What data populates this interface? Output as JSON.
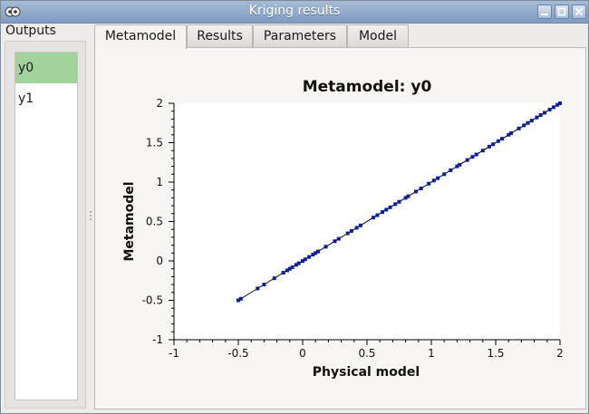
{
  "window": {
    "title": "Kriging results"
  },
  "outputs": {
    "label": "Outputs",
    "items": [
      {
        "label": "y0",
        "selected": true
      },
      {
        "label": "y1",
        "selected": false
      }
    ]
  },
  "tabs": [
    {
      "label": "Metamodel",
      "active": true
    },
    {
      "label": "Results",
      "active": false
    },
    {
      "label": "Parameters",
      "active": false
    },
    {
      "label": "Model",
      "active": false
    }
  ],
  "chart_data": {
    "type": "scatter",
    "title": "Metamodel: y0",
    "xlabel": "Physical model",
    "ylabel": "Metamodel",
    "xlim": [
      -1,
      2
    ],
    "ylim": [
      -1,
      2
    ],
    "xticks": [
      "-1",
      "-0.5",
      "0",
      "0.5",
      "1",
      "1.5",
      "2"
    ],
    "yticks": [
      "-1",
      "-0.5",
      "0",
      "0.5",
      "1",
      "1.5",
      "2"
    ],
    "grid": false,
    "legend": "none",
    "series": [
      {
        "points": [
          [
            -0.5,
            -0.5
          ],
          [
            -0.48,
            -0.48
          ],
          [
            -0.35,
            -0.35
          ],
          [
            -0.3,
            -0.3
          ],
          [
            -0.22,
            -0.22
          ],
          [
            -0.15,
            -0.15
          ],
          [
            -0.12,
            -0.12
          ],
          [
            -0.1,
            -0.1
          ],
          [
            -0.08,
            -0.08
          ],
          [
            -0.05,
            -0.05
          ],
          [
            -0.03,
            -0.03
          ],
          [
            0.0,
            0.0
          ],
          [
            0.02,
            0.02
          ],
          [
            0.05,
            0.05
          ],
          [
            0.08,
            0.08
          ],
          [
            0.1,
            0.1
          ],
          [
            0.12,
            0.12
          ],
          [
            0.18,
            0.18
          ],
          [
            0.25,
            0.25
          ],
          [
            0.28,
            0.28
          ],
          [
            0.35,
            0.35
          ],
          [
            0.38,
            0.38
          ],
          [
            0.42,
            0.42
          ],
          [
            0.45,
            0.45
          ],
          [
            0.55,
            0.55
          ],
          [
            0.58,
            0.58
          ],
          [
            0.62,
            0.62
          ],
          [
            0.65,
            0.65
          ],
          [
            0.68,
            0.68
          ],
          [
            0.72,
            0.72
          ],
          [
            0.75,
            0.75
          ],
          [
            0.8,
            0.8
          ],
          [
            0.82,
            0.82
          ],
          [
            0.88,
            0.88
          ],
          [
            0.92,
            0.92
          ],
          [
            0.98,
            0.98
          ],
          [
            1.02,
            1.02
          ],
          [
            1.05,
            1.05
          ],
          [
            1.1,
            1.1
          ],
          [
            1.15,
            1.15
          ],
          [
            1.2,
            1.2
          ],
          [
            1.22,
            1.22
          ],
          [
            1.28,
            1.28
          ],
          [
            1.32,
            1.32
          ],
          [
            1.35,
            1.35
          ],
          [
            1.4,
            1.4
          ],
          [
            1.45,
            1.45
          ],
          [
            1.48,
            1.48
          ],
          [
            1.52,
            1.52
          ],
          [
            1.55,
            1.55
          ],
          [
            1.6,
            1.6
          ],
          [
            1.62,
            1.62
          ],
          [
            1.68,
            1.68
          ],
          [
            1.72,
            1.72
          ],
          [
            1.75,
            1.75
          ],
          [
            1.78,
            1.78
          ],
          [
            1.82,
            1.82
          ],
          [
            1.85,
            1.85
          ],
          [
            1.88,
            1.88
          ],
          [
            1.92,
            1.92
          ],
          [
            1.95,
            1.95
          ],
          [
            1.98,
            1.98
          ],
          [
            2.0,
            2.0
          ]
        ],
        "color": "#0b1e9e"
      }
    ],
    "reference_line": {
      "from": [
        -0.5,
        -0.5
      ],
      "to": [
        2,
        2
      ],
      "color": "#000000"
    }
  },
  "colors": {
    "selection": "#a3d39c",
    "points": "#0b1e9e"
  }
}
